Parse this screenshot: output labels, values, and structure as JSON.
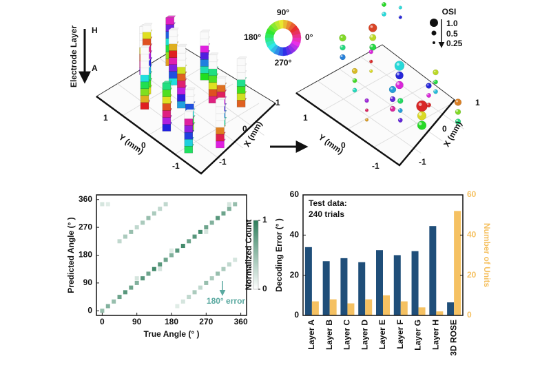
{
  "electrode_panel": {
    "title": "Electrode Layer",
    "top_label": "H",
    "bottom_label": "A",
    "x_label": "X (mm)",
    "y_label": "Y (mm)",
    "x_ticks": [
      "1",
      "0",
      "-1"
    ],
    "y_ticks": [
      "1",
      "0",
      "-1"
    ]
  },
  "color_wheel": {
    "labels": [
      "90°",
      "0°",
      "180°",
      "270°"
    ]
  },
  "osi_panel": {
    "legend_title": "OSI",
    "legend_labels": [
      "1.0",
      "0.5",
      "0.25"
    ],
    "x_label": "X (mm)",
    "y_label": "Y (mm)",
    "x_ticks": [
      "1",
      "0",
      "-1"
    ],
    "y_ticks": [
      "1",
      "0",
      "-1"
    ]
  },
  "chart_data": [
    {
      "type": "scatter",
      "xlabel": "True Angle (°  )",
      "ylabel": "Predicted Angle (° )",
      "xlim": [
        -15,
        375
      ],
      "ylim": [
        -15,
        375
      ],
      "xticks": [
        0,
        90,
        180,
        270,
        360
      ],
      "yticks": [
        0,
        90,
        180,
        270,
        360
      ],
      "x": [
        0,
        15,
        30,
        45,
        60,
        75,
        90,
        105,
        120,
        135,
        150,
        165,
        180,
        195,
        210,
        225,
        240,
        255,
        270,
        285,
        300,
        315,
        330,
        345,
        225,
        240,
        255,
        270,
        285,
        300,
        315,
        330,
        345,
        195,
        210,
        45,
        60,
        75,
        90,
        105,
        120,
        135,
        150,
        165,
        0,
        15,
        90,
        150,
        270,
        330,
        180
      ],
      "y": [
        0,
        15,
        30,
        45,
        60,
        75,
        90,
        105,
        120,
        135,
        150,
        165,
        180,
        195,
        210,
        225,
        240,
        255,
        270,
        285,
        300,
        315,
        330,
        345,
        45,
        60,
        75,
        90,
        105,
        120,
        135,
        150,
        165,
        15,
        30,
        225,
        240,
        255,
        270,
        285,
        300,
        315,
        330,
        345,
        345,
        345,
        105,
        135,
        255,
        345,
        195
      ],
      "values": [
        0.5,
        0.6,
        0.5,
        0.7,
        0.8,
        0.7,
        0.6,
        0.8,
        0.7,
        0.9,
        0.8,
        0.7,
        0.6,
        0.8,
        0.9,
        0.7,
        0.8,
        0.9,
        0.7,
        0.6,
        0.8,
        0.7,
        0.6,
        0.5,
        0.3,
        0.4,
        0.3,
        0.5,
        0.4,
        0.5,
        0.4,
        0.3,
        0.2,
        0.15,
        0.2,
        0.3,
        0.4,
        0.5,
        0.3,
        0.4,
        0.5,
        0.4,
        0.3,
        0.3,
        0.2,
        0.15,
        0.2,
        0.2,
        0.2,
        0.2,
        0.15
      ],
      "colorbar": {
        "label": "Normalized Count",
        "lim": [
          0,
          1
        ],
        "ticks": [
          0,
          1
        ],
        "colors": [
          "#ffffff",
          "#2e7d5b"
        ]
      },
      "annotation": "180° error"
    },
    {
      "type": "bar",
      "ylabel": "Decoding Error (° )",
      "y2label": "Number of Units",
      "categories": [
        "Layer A",
        "Layer B",
        "Layer C",
        "Layer D",
        "Layer E",
        "Layer F",
        "Layer G",
        "Layer H",
        "3D ROSE"
      ],
      "series": [
        {
          "color": "#1f4e79",
          "values": [
            34,
            27,
            28.5,
            26.5,
            32.5,
            30,
            32,
            44.5,
            6.5
          ]
        },
        {
          "color": "#f5c162",
          "axis": "y2",
          "values": [
            7,
            8,
            6,
            8,
            10,
            7,
            4,
            2,
            52
          ]
        }
      ],
      "ylim": [
        0,
        60
      ],
      "yticks": [
        0,
        20,
        40,
        60
      ],
      "y2lim": [
        0,
        60
      ],
      "y2ticks": [
        0,
        20,
        40,
        60
      ],
      "annotation": [
        "Test data:",
        "240 trials"
      ]
    }
  ]
}
